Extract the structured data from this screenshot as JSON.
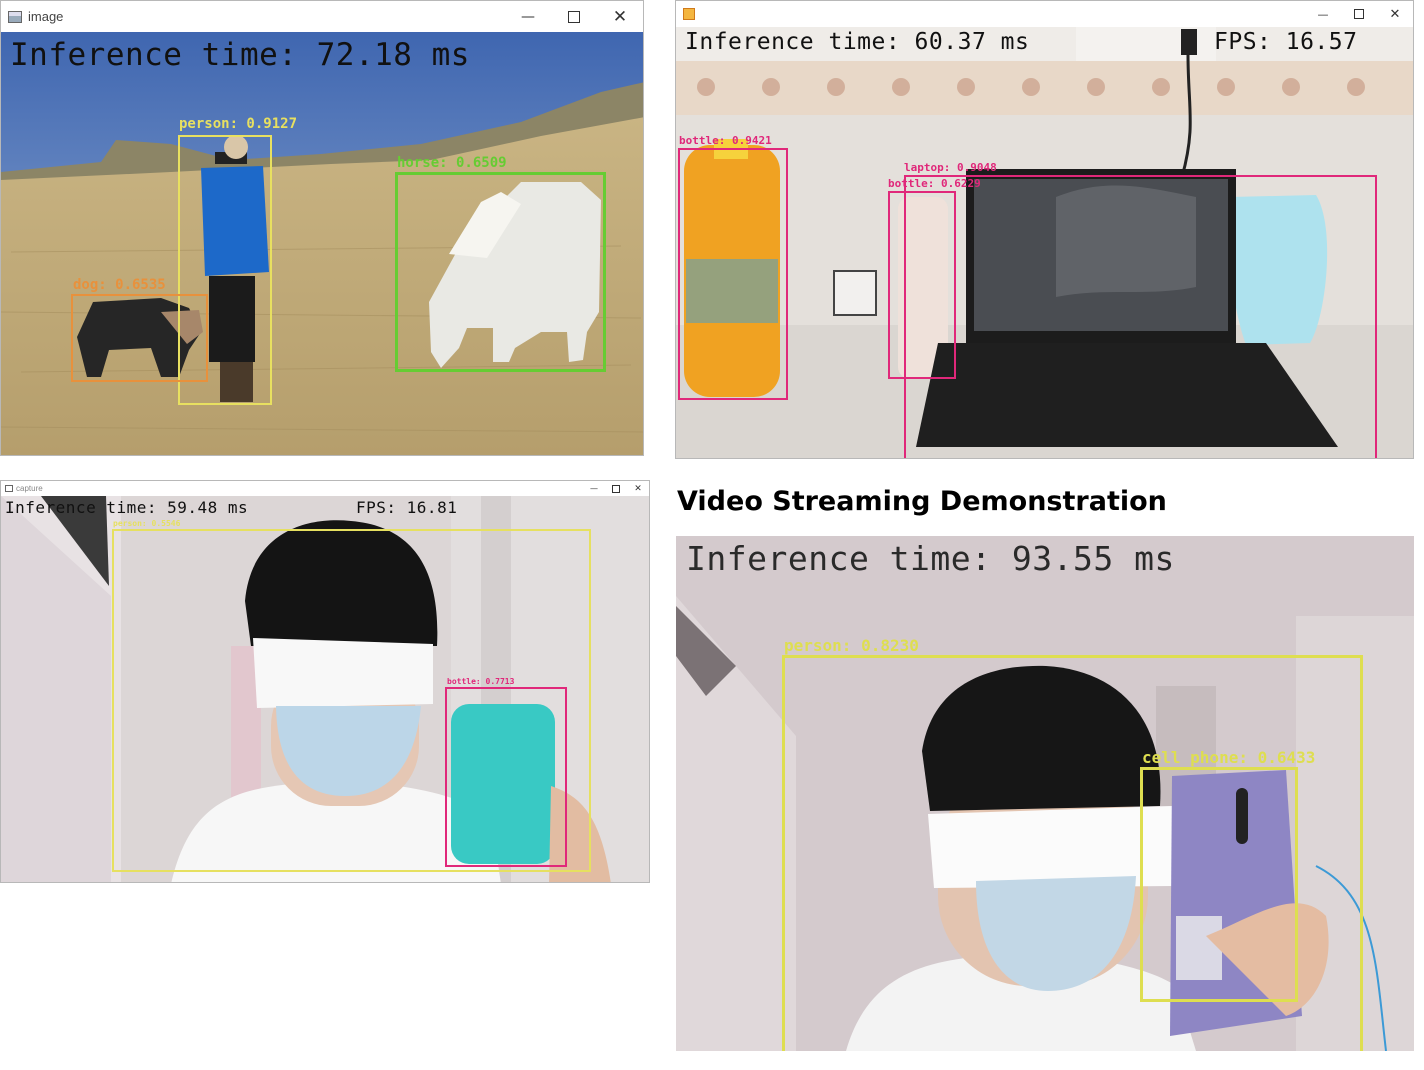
{
  "windows": {
    "w1": {
      "title": "image",
      "inference": "Inference time: 72.18 ms",
      "detections": [
        {
          "label": "person: 0.9127",
          "color": "#e8e060"
        },
        {
          "label": "horse: 0.6509",
          "color": "#66cc33"
        },
        {
          "label": "dog: 0.6535",
          "color": "#e8913c"
        }
      ]
    },
    "w2": {
      "inference": "Inference time: 60.37 ms",
      "fps": "FPS: 16.57",
      "detections": [
        {
          "label": "bottle: 0.9421",
          "color": "#e0287a"
        },
        {
          "label": "laptop: 0.9048",
          "color": "#e0287a"
        },
        {
          "label": "bottle: 0.6229",
          "color": "#e0287a"
        }
      ]
    },
    "w3": {
      "title": "capture",
      "inference": "Inference time: 59.48 ms",
      "fps": "FPS: 16.81",
      "detections": [
        {
          "label": "person: 0.5546",
          "color": "#e6e060"
        },
        {
          "label": "bottle: 0.7713",
          "color": "#e0287a"
        }
      ]
    }
  },
  "demo": {
    "heading": "Video Streaming Demonstration",
    "inference": "Inference time: 93.55 ms",
    "detections": [
      {
        "label": "person: 0.8230",
        "color": "#dede50"
      },
      {
        "label": "cell phone: 0.6433",
        "color": "#dede50"
      }
    ]
  },
  "icons": {
    "window_icon": "image-window-icon",
    "minimize": "minimize-icon",
    "maximize": "maximize-icon",
    "close": "close-icon"
  }
}
